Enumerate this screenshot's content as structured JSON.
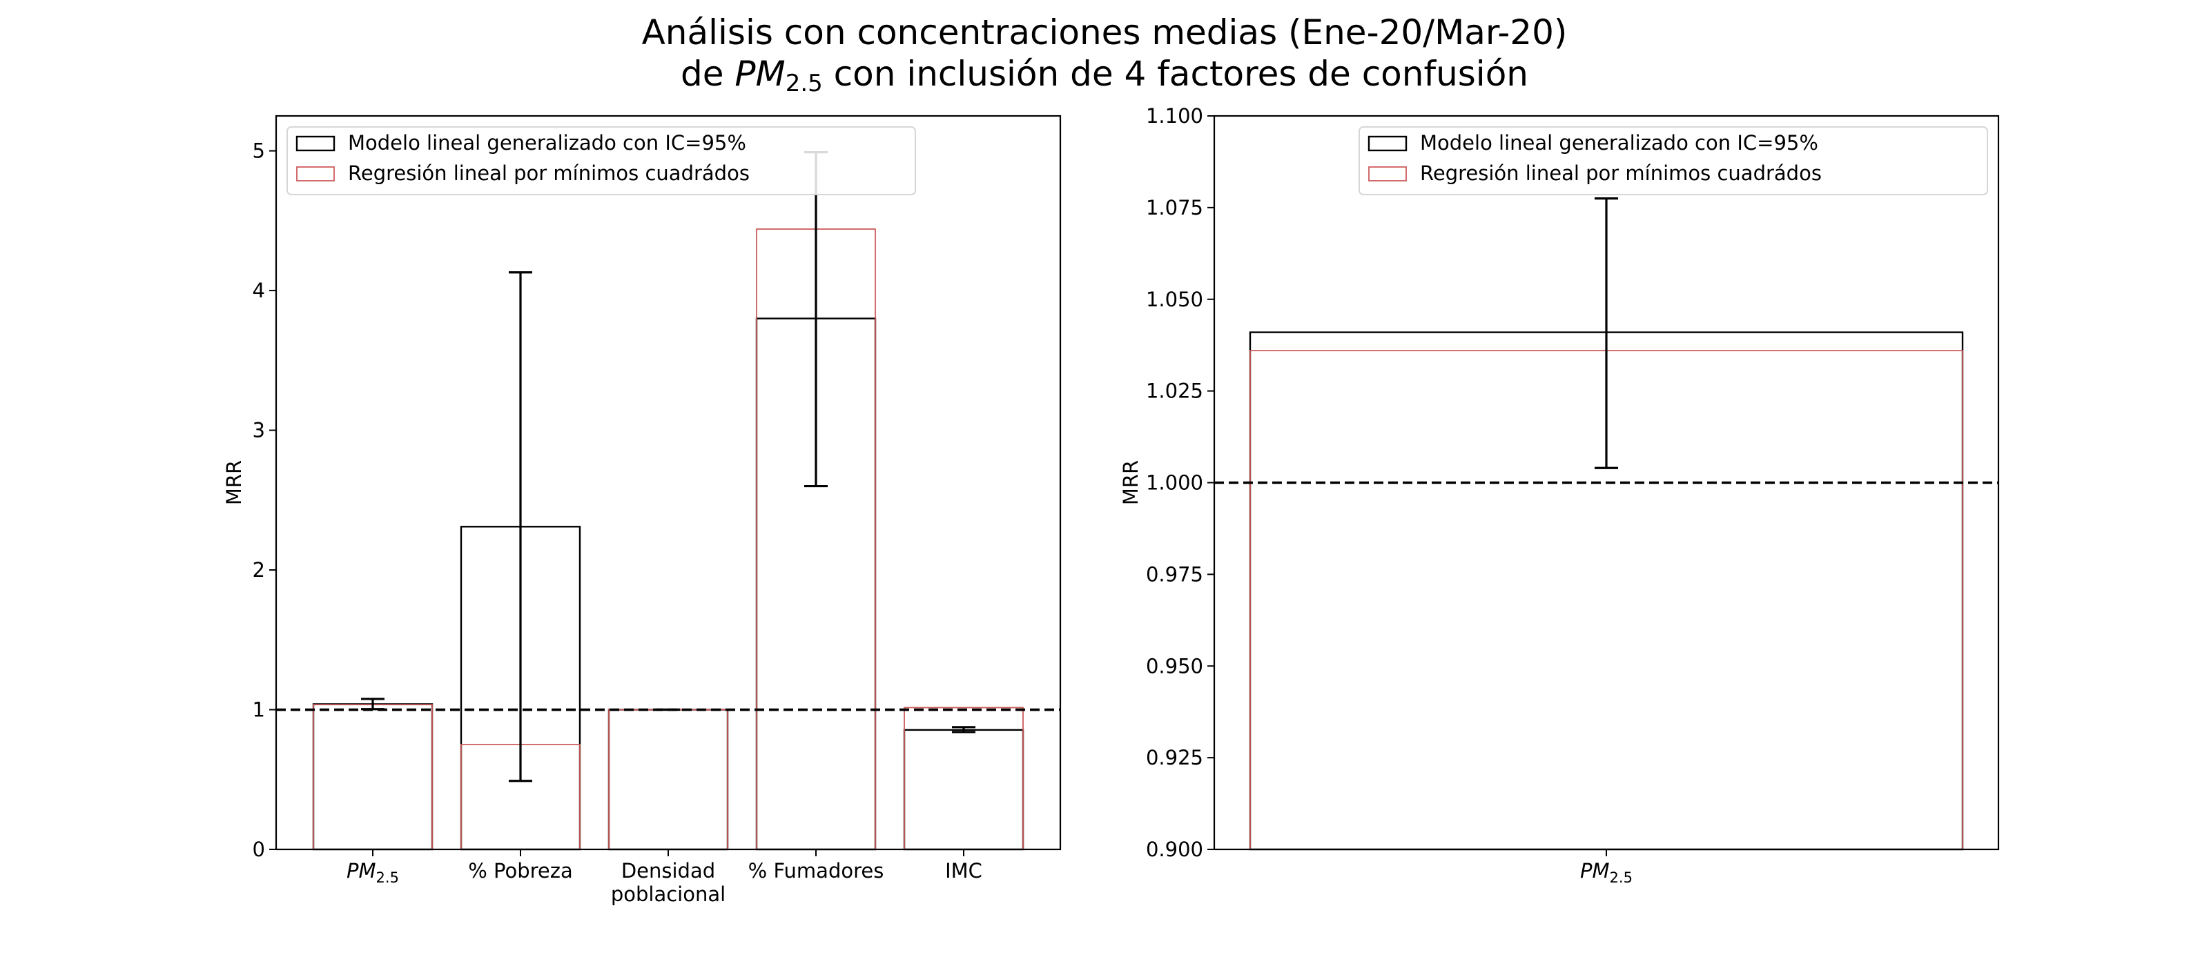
{
  "figure": {
    "title_line1": "Análisis con concentraciones medias (Ene-20/Mar-20)",
    "title_line2_pre": "de ",
    "title_line2_math": "PM",
    "title_line2_sub": "2.5",
    "title_line2_post": " con inclusión de 4 factores de confusión"
  },
  "colors": {
    "glm_edge": "#000000",
    "ols_edge": "#cd5c5c",
    "reference_line": "#000000",
    "errorbar": "#000000"
  },
  "chart_data": [
    {
      "type": "bar",
      "categories": [
        {
          "main": "PM",
          "sub": "2.5",
          "math": true
        },
        {
          "main": "% Pobreza",
          "math": false
        },
        {
          "main": "Densidad",
          "line2": "poblacional",
          "math": false
        },
        {
          "main": "% Fumadores",
          "math": false
        },
        {
          "main": "IMC",
          "math": false
        }
      ],
      "series": [
        {
          "name": "Modelo lineal generalizado con IC=95%",
          "values": [
            1.04,
            2.31,
            1.0,
            3.8,
            0.855
          ]
        },
        {
          "name": "Regresión lineal por mínimos cuadrádos",
          "values": [
            1.036,
            0.75,
            1.0,
            4.44,
            1.015
          ]
        }
      ],
      "error_bars": [
        {
          "low": 1.004,
          "high": 1.077
        },
        {
          "low": 0.49,
          "high": 4.13
        },
        {
          "low": 1.0,
          "high": 1.0
        },
        {
          "low": 2.6,
          "high": 4.99
        },
        {
          "low": 0.84,
          "high": 0.875
        }
      ],
      "reference_line": 1.0,
      "xlabel": "",
      "ylabel": "MRR",
      "ylim": [
        0,
        5.25
      ],
      "yticks": [
        "0",
        "1",
        "2",
        "3",
        "4",
        "5"
      ],
      "grid": false,
      "legend_position": "upper left"
    },
    {
      "type": "bar",
      "categories": [
        {
          "main": "PM",
          "sub": "2.5",
          "math": true
        }
      ],
      "series": [
        {
          "name": "Modelo lineal generalizado con IC=95%",
          "values": [
            1.041
          ]
        },
        {
          "name": "Regresión lineal por mínimos cuadrádos",
          "values": [
            1.036
          ]
        }
      ],
      "error_bars": [
        {
          "low": 1.004,
          "high": 1.0775
        }
      ],
      "reference_line": 1.0,
      "xlabel": "",
      "ylabel": "MRR",
      "ylim": [
        0.9,
        1.1
      ],
      "yticks": [
        "0.900",
        "0.925",
        "0.950",
        "0.975",
        "1.000",
        "1.025",
        "1.050",
        "1.075",
        "1.100"
      ],
      "grid": false,
      "legend_position": "upper right"
    }
  ]
}
